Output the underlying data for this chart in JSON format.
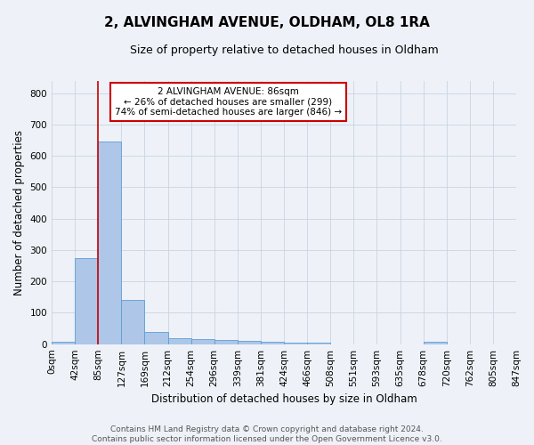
{
  "title": "2, ALVINGHAM AVENUE, OLDHAM, OL8 1RA",
  "subtitle": "Size of property relative to detached houses in Oldham",
  "xlabel": "Distribution of detached houses by size in Oldham",
  "ylabel": "Number of detached properties",
  "bar_values": [
    8,
    275,
    645,
    140,
    38,
    20,
    15,
    12,
    10,
    7,
    6,
    5,
    0,
    0,
    0,
    0,
    7,
    0,
    0,
    0
  ],
  "bin_labels": [
    "0sqm",
    "42sqm",
    "85sqm",
    "127sqm",
    "169sqm",
    "212sqm",
    "254sqm",
    "296sqm",
    "339sqm",
    "381sqm",
    "424sqm",
    "466sqm",
    "508sqm",
    "551sqm",
    "593sqm",
    "635sqm",
    "678sqm",
    "720sqm",
    "762sqm",
    "805sqm",
    "847sqm"
  ],
  "bar_color": "#aec6e8",
  "bar_edge_color": "#5a9fd4",
  "vline_x": 2,
  "vline_color": "#cc0000",
  "ylim": [
    0,
    840
  ],
  "yticks": [
    0,
    100,
    200,
    300,
    400,
    500,
    600,
    700,
    800
  ],
  "annotation_text": "2 ALVINGHAM AVENUE: 86sqm\n← 26% of detached houses are smaller (299)\n74% of semi-detached houses are larger (846) →",
  "annotation_box_color": "#ffffff",
  "annotation_box_edge": "#cc0000",
  "footer_text": "Contains HM Land Registry data © Crown copyright and database right 2024.\nContains public sector information licensed under the Open Government Licence v3.0.",
  "bg_color": "#eef2f8",
  "grid_color": "#c8d4e4",
  "title_fontsize": 11,
  "subtitle_fontsize": 9,
  "axis_label_fontsize": 8.5,
  "tick_fontsize": 7.5,
  "footer_fontsize": 6.5
}
